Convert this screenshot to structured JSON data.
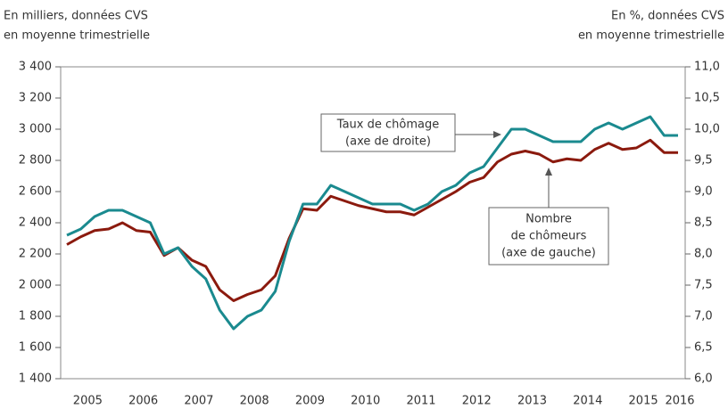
{
  "chart_data": {
    "type": "line",
    "left_header": [
      "En milliers, données CVS",
      "en moyenne trimestrielle"
    ],
    "right_header": [
      "En %, données CVS",
      "en moyenne trimestrielle"
    ],
    "categories": [
      "2005",
      null,
      null,
      null,
      "2006",
      null,
      null,
      null,
      "2007",
      null,
      null,
      null,
      "2008",
      null,
      null,
      null,
      "2009",
      null,
      null,
      null,
      "2010",
      null,
      null,
      null,
      "2011",
      null,
      null,
      null,
      "2012",
      null,
      null,
      null,
      "2013",
      null,
      null,
      null,
      "2014",
      null,
      null,
      null,
      "2015",
      null,
      null,
      null,
      "2016"
    ],
    "series": [
      {
        "name": [
          "Nombre",
          "de chômeurs",
          "(axe de gauche)"
        ],
        "color": "#8b1a0e",
        "axis": "y",
        "values": [
          2260,
          2310,
          2350,
          2360,
          2400,
          2350,
          2340,
          2190,
          2240,
          2160,
          2120,
          1970,
          1900,
          1940,
          1970,
          2060,
          2300,
          2490,
          2480,
          2570,
          2540,
          2510,
          2490,
          2470,
          2470,
          2450,
          2500,
          2550,
          2600,
          2660,
          2690,
          2790,
          2840,
          2860,
          2840,
          2790,
          2810,
          2800,
          2870,
          2910,
          2870,
          2880,
          2930,
          2850,
          2850
        ]
      },
      {
        "name": [
          "Taux de chômage",
          "(axe de droite)"
        ],
        "color": "#1a8a8f",
        "axis": "y2",
        "values": [
          8.3,
          8.4,
          8.6,
          8.7,
          8.7,
          8.6,
          8.5,
          8.0,
          8.1,
          7.8,
          7.6,
          7.1,
          6.8,
          7.0,
          7.1,
          7.4,
          8.2,
          8.8,
          8.8,
          9.1,
          9.0,
          8.9,
          8.8,
          8.8,
          8.8,
          8.7,
          8.8,
          9.0,
          9.1,
          9.3,
          9.4,
          9.7,
          10.0,
          10.0,
          9.9,
          9.8,
          9.8,
          9.8,
          10.0,
          10.1,
          10.0,
          10.1,
          10.2,
          9.9,
          9.9
        ]
      }
    ],
    "ylim": [
      1400,
      3400
    ],
    "yticks": [
      {
        "value": 1400,
        "label": "1 400"
      },
      {
        "value": 1600,
        "label": "1 600"
      },
      {
        "value": 1800,
        "label": "1 800"
      },
      {
        "value": 2000,
        "label": "2 000"
      },
      {
        "value": 2200,
        "label": "2 200"
      },
      {
        "value": 2400,
        "label": "2 400"
      },
      {
        "value": 2600,
        "label": "2 600"
      },
      {
        "value": 2800,
        "label": "2 800"
      },
      {
        "value": 3000,
        "label": "3 000"
      },
      {
        "value": 3200,
        "label": "3 200"
      },
      {
        "value": 3400,
        "label": "3 400"
      }
    ],
    "y2lim": [
      6,
      11
    ],
    "y2ticks": [
      {
        "value": 6,
        "label": "6,0"
      },
      {
        "value": 6.5,
        "label": "6,5"
      },
      {
        "value": 7,
        "label": "7,0"
      },
      {
        "value": 7.5,
        "label": "7,5"
      },
      {
        "value": 8,
        "label": "8,0"
      },
      {
        "value": 8.5,
        "label": "8,5"
      },
      {
        "value": 9,
        "label": "9,0"
      },
      {
        "value": 9.5,
        "label": "9,5"
      },
      {
        "value": 10,
        "label": "10,0"
      },
      {
        "value": 10.5,
        "label": "10,5"
      },
      {
        "value": 11,
        "label": "11,0"
      }
    ],
    "grid": false
  }
}
